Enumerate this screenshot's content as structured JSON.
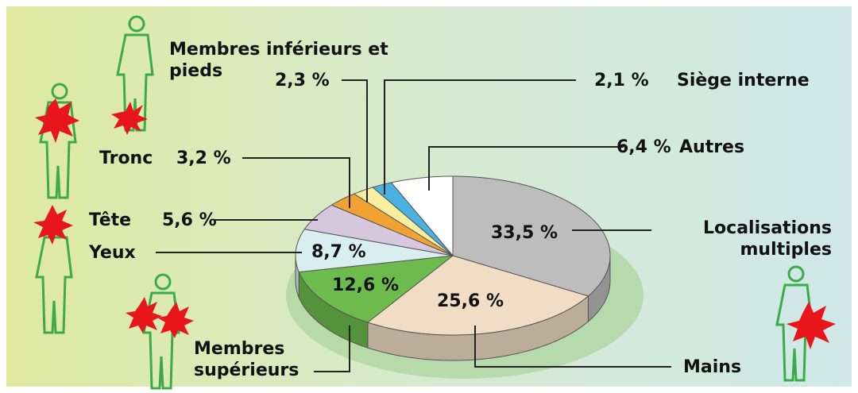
{
  "chart_data": {
    "type": "pie",
    "categories": [
      "Localisations multiples",
      "Mains",
      "Membres supérieurs",
      "Yeux",
      "Tête",
      "Tronc",
      "Membres inférieurs et pieds",
      "Siège interne",
      "Autres"
    ],
    "values": [
      33.5,
      25.6,
      12.6,
      8.7,
      5.6,
      3.2,
      2.3,
      2.1,
      6.4
    ],
    "value_labels": [
      "33,5 %",
      "25,6 %",
      "12,6 %",
      "8,7 %",
      "5,6 %",
      "3,2 %",
      "2,3 %",
      "2,1 %",
      "6,4 %"
    ],
    "colors": [
      "#bdbdbd",
      "#f1dcc6",
      "#6dbb4d",
      "#d9eeee",
      "#d6c6de",
      "#f0a232",
      "#f8eea0",
      "#4ab2e2",
      "#ffffff"
    ]
  }
}
